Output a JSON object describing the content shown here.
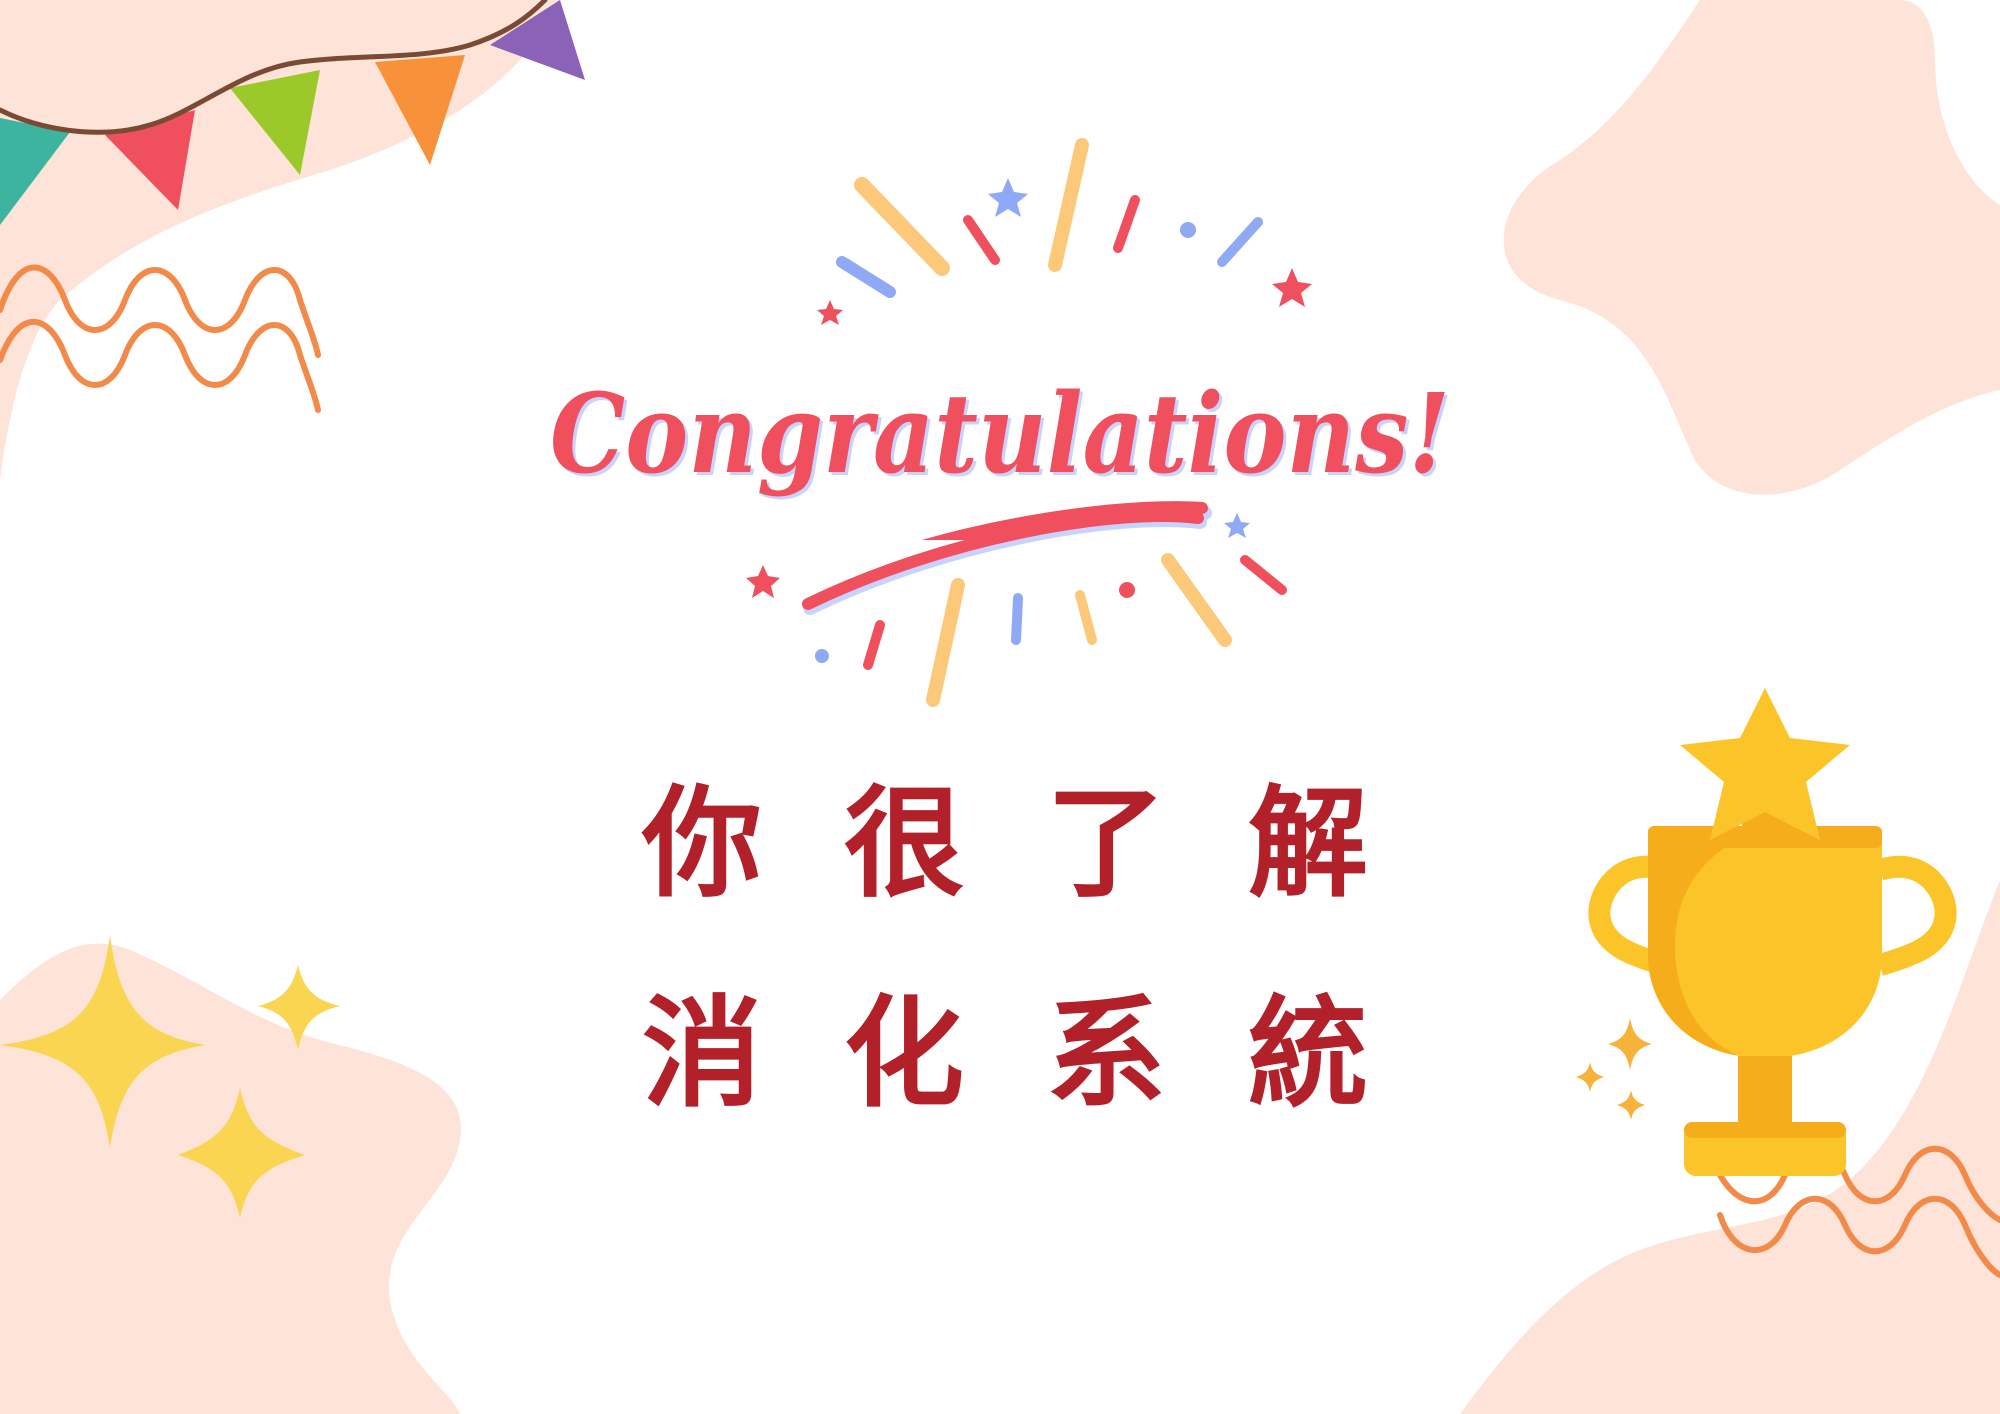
{
  "card": {
    "headline": "Congratulations!",
    "message_line_1": "你很了解",
    "message_line_2": "消化系統"
  },
  "colors": {
    "background": "#ffffff",
    "blob": "#fde3d8",
    "headline": "#f0505e",
    "headline_shadow": "#c8d2ff",
    "message": "#b2202a",
    "squiggle": "#f28a4a",
    "sparkle": "#f9d552",
    "trophy": "#fbc52a",
    "trophy_shadow": "#f5ad1c",
    "burst_blue": "#8fa9f5",
    "burst_yellow": "#fcc97a",
    "burst_red": "#f0505e"
  },
  "decorations": [
    "bunting-flags",
    "orange-squiggle-lines",
    "yellow-sparkle-stars",
    "pink-blob-background",
    "gold-trophy-icon",
    "confetti-burst"
  ]
}
